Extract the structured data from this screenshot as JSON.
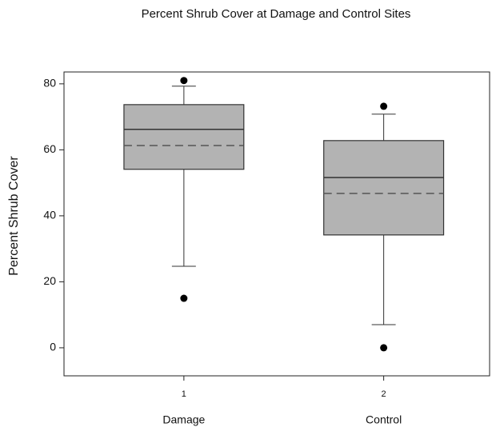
{
  "chart_data": {
    "type": "box",
    "title": "Percent Shrub Cover at Damage and Control Sites",
    "ylabel": "Percent Shrub Cover",
    "categories": [
      "Damage",
      "Control"
    ],
    "x": [
      1,
      2
    ],
    "xlim": [
      0.4,
      2.53
    ],
    "xticks": [
      1,
      2
    ],
    "ylim": [
      -8.5,
      83.6
    ],
    "yticks": [
      0,
      20,
      40,
      60,
      80
    ],
    "color": "#b3b3b3",
    "series": [
      {
        "whisker_low": 24.7,
        "q1": 54.1,
        "median": 66.2,
        "mean": 61.3,
        "q3": 73.7,
        "whisker_high": 79.3,
        "outliers": [
          81,
          15
        ]
      },
      {
        "whisker_low": 7.0,
        "q1": 34.2,
        "median": 51.6,
        "mean": 46.8,
        "q3": 62.8,
        "whisker_high": 70.8,
        "outliers": [
          73.2,
          0
        ]
      }
    ]
  }
}
